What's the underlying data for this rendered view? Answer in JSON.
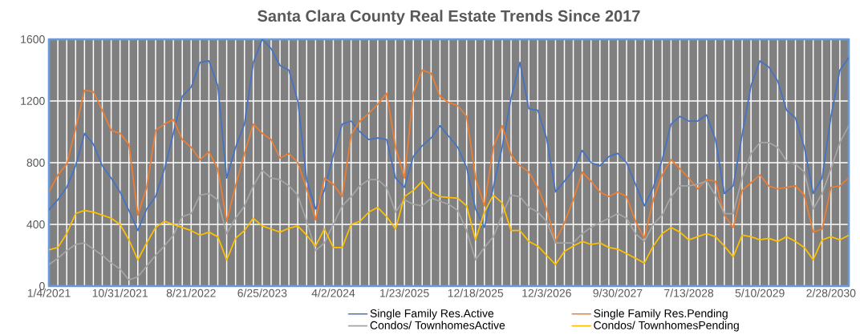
{
  "chart_data": {
    "type": "line",
    "title": "Santa Clara County Real Estate Trends     Since 2017",
    "categories": [
      "1/4/2021",
      null,
      null,
      null,
      null,
      null,
      null,
      null,
      "10/31/2021",
      null,
      null,
      null,
      null,
      null,
      null,
      null,
      "8/21/2022",
      null,
      null,
      null,
      null,
      null,
      null,
      null,
      "6/25/2023",
      null,
      null,
      null,
      null,
      null,
      null,
      null,
      "4/2/2024",
      null,
      null,
      null,
      null,
      null,
      null,
      null,
      "1/23/2025",
      null,
      null,
      null,
      null,
      null,
      null,
      null,
      "12/18/2025",
      null,
      null,
      null,
      null,
      null,
      null,
      null,
      "12/3/2026",
      null,
      null,
      null,
      null,
      null,
      null,
      null,
      "9/30/2027",
      null,
      null,
      null,
      null,
      null,
      null,
      null,
      "7/13/2028",
      null,
      null,
      null,
      null,
      null,
      null,
      null,
      "5/10/2029",
      null,
      null,
      null,
      null,
      null,
      null,
      null,
      "2/28/2030",
      null,
      null
    ],
    "series": [
      {
        "name": "Single Family Res.Active",
        "color": "#4472c4",
        "values": [
          495,
          560,
          640,
          780,
          990,
          920,
          780,
          700,
          610,
          490,
          360,
          500,
          580,
          760,
          990,
          1230,
          1290,
          1450,
          1460,
          1300,
          700,
          900,
          1050,
          1450,
          1600,
          1540,
          1430,
          1400,
          1200,
          690,
          500,
          620,
          850,
          1050,
          1070,
          1000,
          950,
          960,
          950,
          700,
          640,
          840,
          910,
          960,
          1040,
          970,
          900,
          770,
          500,
          380,
          640,
          900,
          1220,
          1450,
          1150,
          1140,
          960,
          610,
          680,
          750,
          880,
          800,
          780,
          840,
          860,
          800,
          660,
          520,
          640,
          820,
          1050,
          1100,
          1070,
          1070,
          1110,
          950,
          600,
          650,
          980,
          1300,
          1460,
          1420,
          1330,
          1140,
          1090,
          900,
          600,
          700,
          1100,
          1400,
          1480
        ]
      },
      {
        "name": "Single Family Res.Pending",
        "color": "#ed7d31",
        "values": [
          610,
          720,
          790,
          1020,
          1270,
          1260,
          1140,
          1010,
          990,
          920,
          460,
          640,
          1010,
          1050,
          1080,
          950,
          900,
          820,
          870,
          760,
          420,
          650,
          860,
          1050,
          990,
          950,
          830,
          860,
          800,
          630,
          430,
          700,
          660,
          580,
          980,
          1070,
          1120,
          1180,
          1250,
          900,
          700,
          1250,
          1400,
          1380,
          1230,
          1190,
          1170,
          1100,
          700,
          520,
          900,
          1040,
          850,
          780,
          740,
          640,
          500,
          290,
          410,
          560,
          740,
          680,
          610,
          580,
          610,
          580,
          420,
          310,
          560,
          720,
          820,
          760,
          700,
          630,
          690,
          680,
          460,
          380,
          620,
          670,
          720,
          650,
          630,
          640,
          650,
          590,
          350,
          370,
          640,
          650,
          700
        ]
      },
      {
        "name": "Condos/ TownhomesActive",
        "color": "#a5a5a5",
        "values": [
          140,
          180,
          230,
          270,
          280,
          240,
          200,
          150,
          110,
          40,
          60,
          130,
          200,
          260,
          330,
          450,
          470,
          590,
          600,
          560,
          340,
          440,
          520,
          650,
          750,
          700,
          690,
          650,
          590,
          420,
          230,
          280,
          400,
          520,
          580,
          650,
          690,
          690,
          640,
          480,
          560,
          530,
          520,
          570,
          550,
          530,
          490,
          360,
          170,
          250,
          320,
          460,
          590,
          580,
          510,
          480,
          420,
          280,
          280,
          280,
          340,
          380,
          410,
          440,
          470,
          440,
          340,
          290,
          400,
          460,
          580,
          650,
          650,
          660,
          680,
          590,
          470,
          470,
          700,
          860,
          930,
          930,
          900,
          810,
          790,
          740,
          500,
          600,
          760,
          930,
          1040
        ]
      },
      {
        "name": "Condos/ TownhomesPending",
        "color": "#ffc000",
        "values": [
          235,
          250,
          340,
          470,
          490,
          480,
          460,
          440,
          400,
          300,
          170,
          280,
          380,
          420,
          400,
          380,
          360,
          330,
          350,
          320,
          170,
          310,
          360,
          440,
          390,
          370,
          350,
          375,
          390,
          330,
          260,
          370,
          250,
          250,
          400,
          420,
          480,
          510,
          450,
          370,
          580,
          620,
          680,
          610,
          580,
          575,
          570,
          520,
          300,
          480,
          590,
          540,
          360,
          360,
          290,
          260,
          200,
          140,
          225,
          260,
          290,
          270,
          280,
          250,
          240,
          210,
          180,
          150,
          260,
          340,
          380,
          350,
          300,
          320,
          340,
          320,
          260,
          190,
          330,
          320,
          300,
          310,
          290,
          320,
          290,
          250,
          170,
          300,
          320,
          300,
          330
        ]
      }
    ],
    "ylim": [
      0,
      1600
    ],
    "yticks": [
      0,
      400,
      800,
      1200,
      1600
    ],
    "grid": true,
    "legend": "bottom"
  }
}
